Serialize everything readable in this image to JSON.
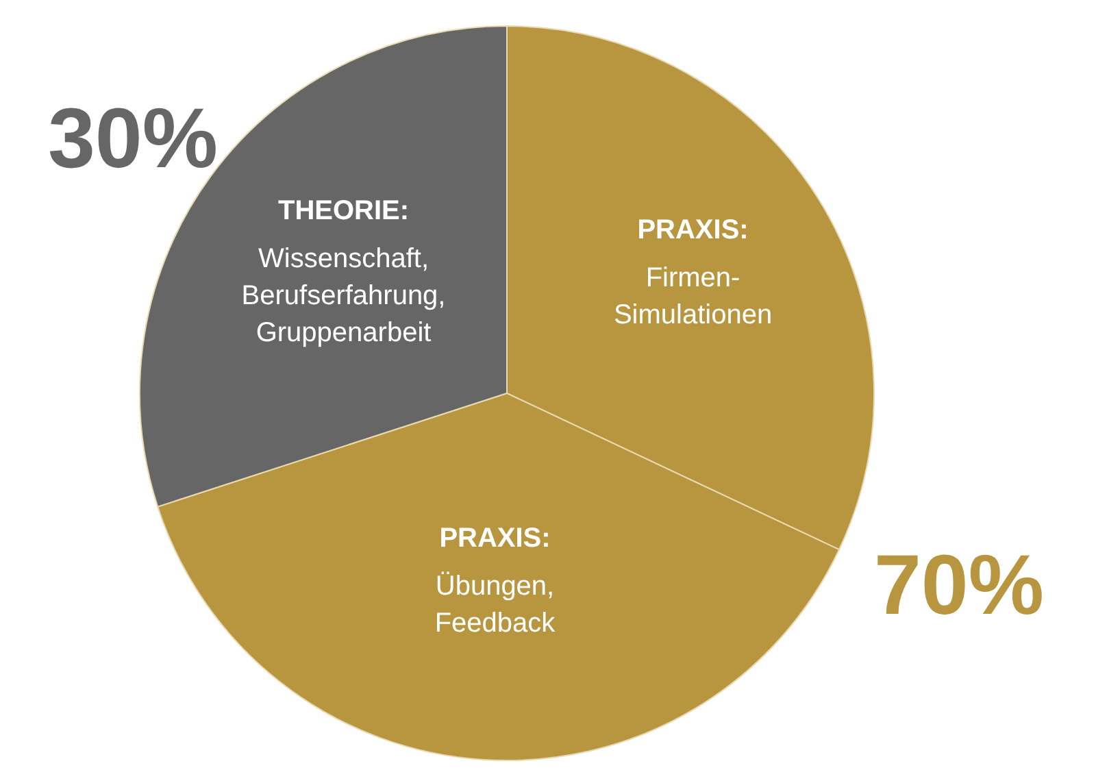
{
  "chart_data": {
    "type": "pie",
    "categories": [
      "PRAXIS:\nFirmen-\nSimulationen",
      "PRAXIS:\nÜbungen,\nFeedback",
      "THEORIE:\nWissenschaft,\nBerufserfahrung,\nGruppenarbeit"
    ],
    "values": [
      32,
      38,
      30
    ],
    "colors": [
      "#b8963f",
      "#b8963f",
      "#666666"
    ],
    "annotations": [
      "70%",
      "30%"
    ]
  }
}
